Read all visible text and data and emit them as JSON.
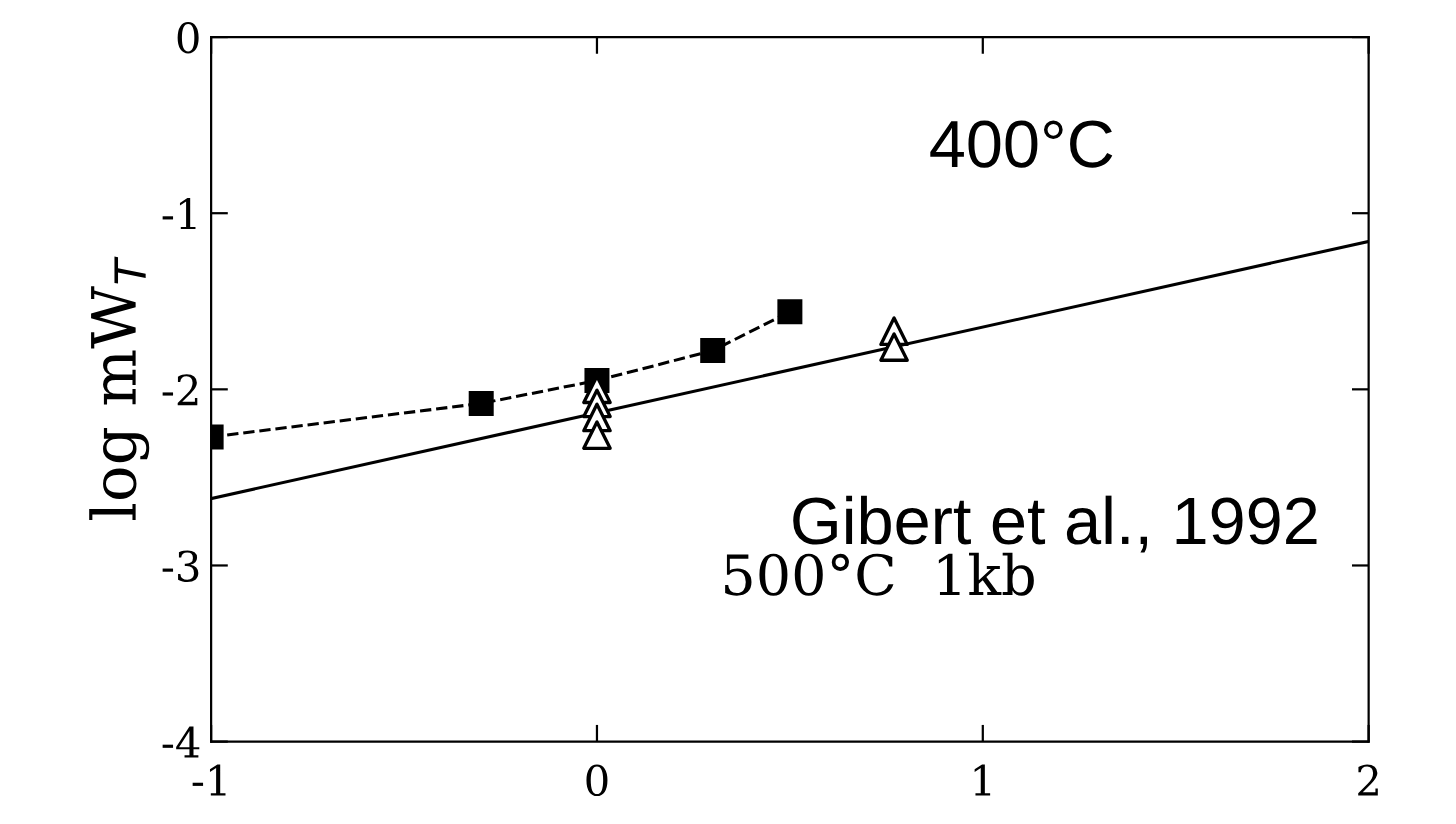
{
  "chart_data": {
    "type": "line",
    "ylabel": "log mW$_{T}$",
    "xlim": [
      -1,
      2
    ],
    "ylim": [
      -4,
      0
    ],
    "xticks": [
      -1,
      0,
      1,
      2
    ],
    "yticks": [
      -4,
      -3,
      -2,
      -1,
      0
    ],
    "grid": false,
    "legend": false,
    "series": [
      {
        "type": "line",
        "color": "#000000",
        "marker": "square",
        "line_style": "dashed",
        "x": [
          -1,
          -0.3,
          0,
          0.3,
          0.5
        ],
        "values": [
          -2.27,
          -2.08,
          -1.95,
          -1.78,
          -1.56
        ]
      },
      {
        "type": "scatter",
        "color": "#000000",
        "marker": "triangle",
        "x": [
          0,
          0,
          0,
          0,
          0.77,
          0.77
        ],
        "values": [
          -2.0,
          -2.08,
          -2.16,
          -2.26,
          -1.67,
          -1.76
        ]
      },
      {
        "color": "#000000",
        "marker": "none",
        "line_style": "solid",
        "x": [
          -1,
          2
        ],
        "values": [
          -2.62,
          -1.16
        ]
      }
    ],
    "annotations": [
      "400°C",
      "Gibert et al., 1992",
      "500°C  1kb"
    ]
  }
}
